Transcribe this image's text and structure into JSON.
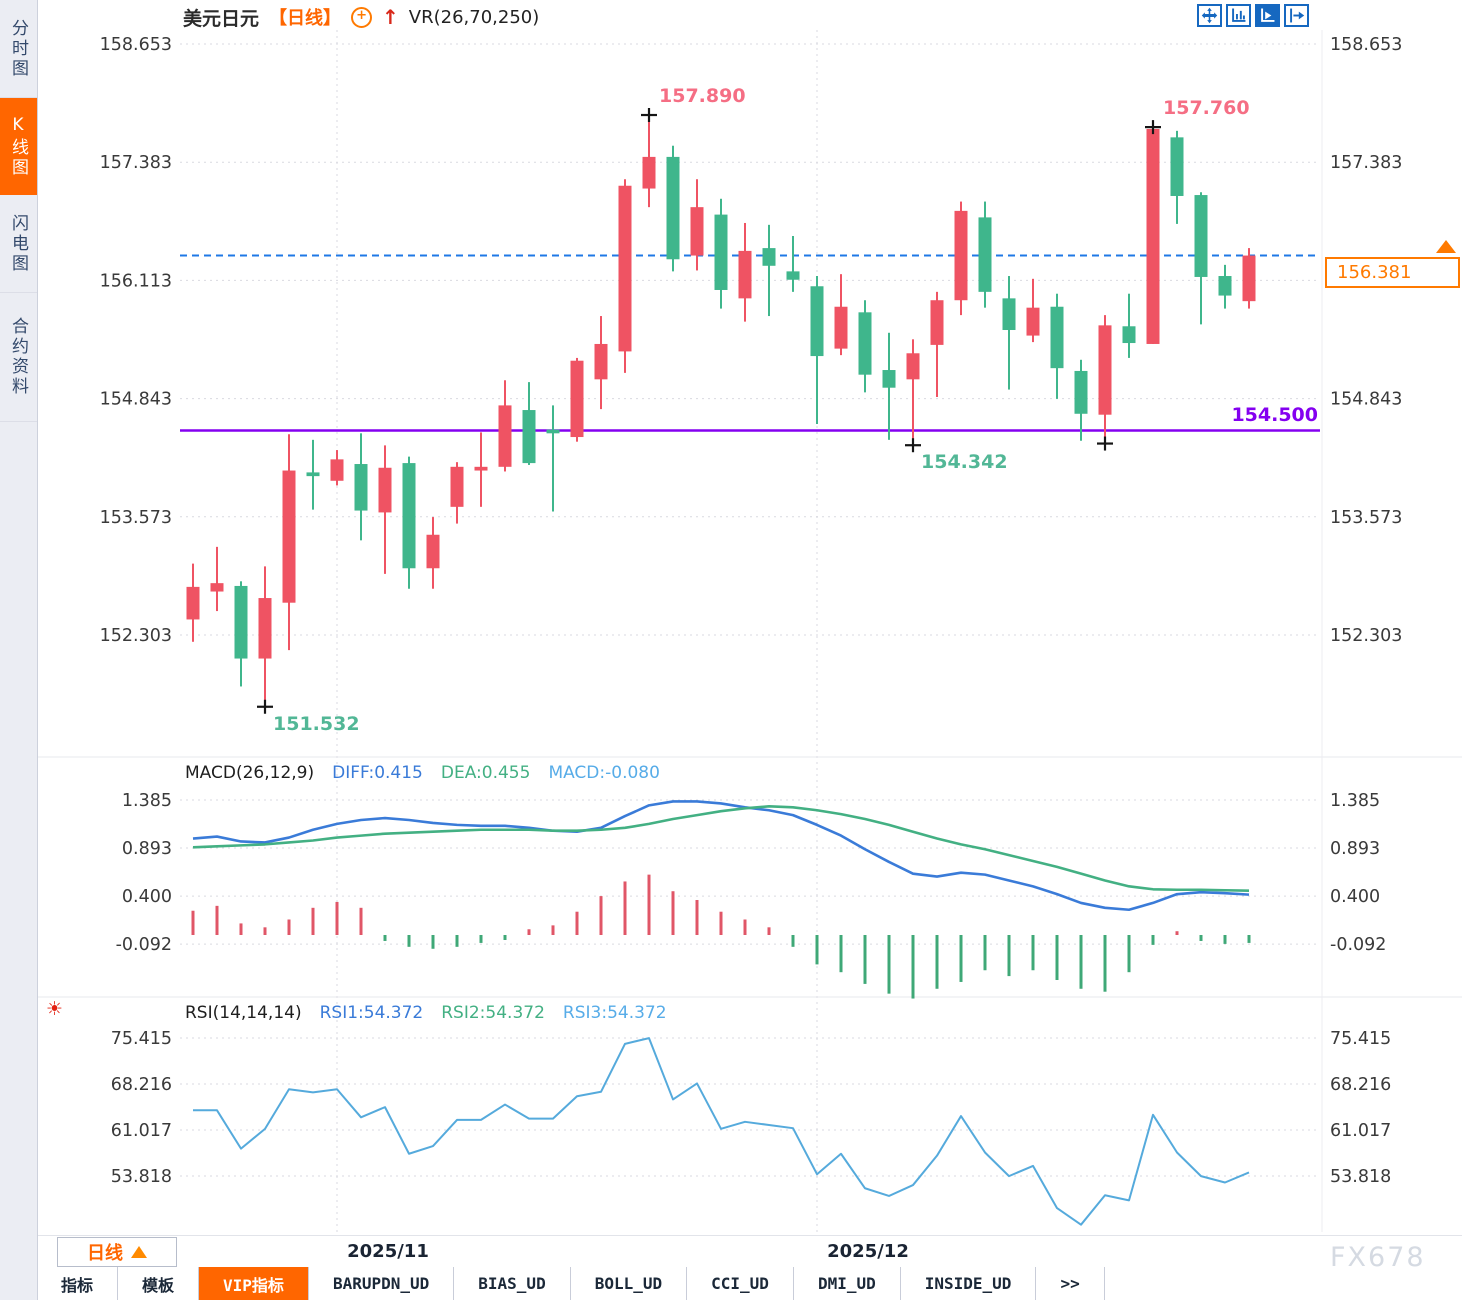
{
  "colors": {
    "up": "#EF5363",
    "down": "#3FB68C",
    "diff_line": "#3A7BD8",
    "dea_line": "#43B083",
    "hist_up": "#E05667",
    "hist_down": "#3FA877",
    "rsi_line": "#55AADC",
    "current_price_line": "#1F78E6",
    "support_line": "#8400F0",
    "accent_orange": "#FF6600",
    "grid": "#D9DAE0",
    "axis_text": "#3A3A3A",
    "cross": "#151515"
  },
  "sidebar": {
    "items": [
      {
        "label": "分时图",
        "active": false
      },
      {
        "label": "K线图",
        "active": true
      },
      {
        "label": "闪电图",
        "active": false
      },
      {
        "label": "合约资料",
        "active": false
      }
    ]
  },
  "header": {
    "symbol": "美元日元",
    "period_tag": "【日线】",
    "overlay_indicator": "VR(26,70,250)"
  },
  "toolbar": {
    "icons": [
      {
        "name": "pan-icon",
        "active": false
      },
      {
        "name": "axis-scale-icon",
        "active": false
      },
      {
        "name": "auto-scale-icon",
        "active": true
      },
      {
        "name": "jump-latest-icon",
        "active": false
      }
    ]
  },
  "chart_data": {
    "type": "candlestick",
    "symbol": "美元日元",
    "period": "日线",
    "price_axis": [
      "158.653",
      "157.383",
      "156.113",
      "154.843",
      "153.573",
      "152.303"
    ],
    "x_axis": [
      {
        "label": "2025/11",
        "index": 6
      },
      {
        "label": "2025/12",
        "index": 26
      }
    ],
    "candles_ohlc": [
      [
        152.47,
        153.07,
        152.23,
        152.82
      ],
      [
        152.77,
        153.25,
        152.56,
        152.86
      ],
      [
        152.83,
        152.88,
        151.75,
        152.05
      ],
      [
        152.05,
        153.04,
        151.53,
        152.7
      ],
      [
        152.65,
        154.46,
        152.14,
        154.07
      ],
      [
        154.05,
        154.4,
        153.65,
        154.01
      ],
      [
        153.96,
        154.29,
        153.91,
        154.19
      ],
      [
        154.14,
        154.47,
        153.32,
        153.64
      ],
      [
        153.62,
        154.34,
        152.96,
        154.1
      ],
      [
        154.15,
        154.22,
        152.8,
        153.02
      ],
      [
        153.02,
        153.57,
        152.8,
        153.38
      ],
      [
        153.68,
        154.16,
        153.5,
        154.11
      ],
      [
        154.07,
        154.48,
        153.68,
        154.11
      ],
      [
        154.11,
        155.04,
        154.06,
        154.77
      ],
      [
        154.72,
        155.02,
        154.13,
        154.15
      ],
      [
        154.51,
        154.77,
        153.63,
        154.47
      ],
      [
        154.43,
        155.28,
        154.38,
        155.25
      ],
      [
        155.05,
        155.73,
        154.73,
        155.43
      ],
      [
        155.35,
        157.2,
        155.12,
        157.13
      ],
      [
        157.1,
        157.89,
        156.9,
        157.44
      ],
      [
        157.44,
        157.56,
        156.21,
        156.34
      ],
      [
        156.38,
        157.2,
        156.22,
        156.9
      ],
      [
        156.82,
        156.99,
        155.81,
        156.01
      ],
      [
        155.92,
        156.73,
        155.67,
        156.43
      ],
      [
        156.46,
        156.71,
        155.73,
        156.27
      ],
      [
        156.21,
        156.59,
        155.99,
        156.12
      ],
      [
        156.05,
        156.16,
        154.57,
        155.3
      ],
      [
        155.38,
        156.18,
        155.31,
        155.83
      ],
      [
        155.77,
        155.9,
        154.91,
        155.1
      ],
      [
        155.15,
        155.55,
        154.4,
        154.96
      ],
      [
        155.05,
        155.48,
        154.34,
        155.33
      ],
      [
        155.42,
        155.99,
        154.86,
        155.9
      ],
      [
        155.9,
        156.96,
        155.74,
        156.86
      ],
      [
        156.79,
        156.96,
        155.82,
        155.99
      ],
      [
        155.92,
        156.16,
        154.94,
        155.58
      ],
      [
        155.52,
        156.13,
        155.45,
        155.82
      ],
      [
        155.83,
        155.97,
        154.84,
        155.17
      ],
      [
        155.14,
        155.26,
        154.39,
        154.68
      ],
      [
        154.67,
        155.74,
        154.36,
        155.63
      ],
      [
        155.62,
        155.97,
        155.28,
        155.44
      ],
      [
        155.43,
        157.76,
        155.43,
        157.74
      ],
      [
        157.65,
        157.72,
        156.72,
        157.02
      ],
      [
        157.03,
        157.06,
        155.64,
        156.15
      ],
      [
        156.16,
        156.28,
        155.81,
        155.95
      ],
      [
        155.89,
        156.46,
        155.81,
        156.38
      ]
    ],
    "annotations": [
      {
        "index": 19,
        "price": 157.89,
        "label": "157.890",
        "kind": "high"
      },
      {
        "index": 40,
        "price": 157.76,
        "label": "157.760",
        "kind": "high"
      },
      {
        "index": 3,
        "price": 151.532,
        "label": "151.532",
        "kind": "low"
      },
      {
        "index": 30,
        "price": 154.342,
        "label": "154.342",
        "kind": "low"
      },
      {
        "index": 38,
        "price": 154.36,
        "label": "",
        "kind": "low"
      }
    ],
    "current_price": {
      "value": "156.381",
      "price": 156.381
    },
    "support_line": {
      "label": "154.500",
      "price": 154.5
    },
    "macd": {
      "title": "MACD(26,12,9)",
      "diff_label": "DIFF:0.415",
      "dea_label": "DEA:0.455",
      "macd_label": "MACD:-0.080",
      "axis": [
        "1.385",
        "0.893",
        "0.400",
        "-0.092"
      ],
      "diff": [
        0.99,
        1.01,
        0.96,
        0.95,
        1.0,
        1.08,
        1.14,
        1.18,
        1.2,
        1.18,
        1.15,
        1.13,
        1.12,
        1.12,
        1.1,
        1.07,
        1.06,
        1.1,
        1.22,
        1.33,
        1.37,
        1.37,
        1.35,
        1.31,
        1.28,
        1.23,
        1.13,
        1.02,
        0.88,
        0.75,
        0.63,
        0.6,
        0.64,
        0.62,
        0.56,
        0.5,
        0.42,
        0.33,
        0.28,
        0.26,
        0.33,
        0.42,
        0.44,
        0.43,
        0.415
      ],
      "dea": [
        0.9,
        0.91,
        0.92,
        0.93,
        0.95,
        0.97,
        1.0,
        1.02,
        1.04,
        1.05,
        1.06,
        1.07,
        1.08,
        1.08,
        1.08,
        1.07,
        1.07,
        1.08,
        1.1,
        1.14,
        1.19,
        1.23,
        1.27,
        1.3,
        1.32,
        1.31,
        1.28,
        1.24,
        1.19,
        1.13,
        1.06,
        0.99,
        0.93,
        0.88,
        0.82,
        0.76,
        0.7,
        0.63,
        0.56,
        0.5,
        0.47,
        0.465,
        0.465,
        0.46,
        0.455
      ],
      "hist": [
        0.25,
        0.3,
        0.12,
        0.08,
        0.16,
        0.28,
        0.34,
        0.28,
        -0.06,
        -0.12,
        -0.14,
        -0.12,
        -0.08,
        -0.05,
        0.06,
        0.1,
        0.24,
        0.4,
        0.55,
        0.62,
        0.45,
        0.36,
        0.24,
        0.16,
        0.08,
        -0.12,
        -0.3,
        -0.38,
        -0.5,
        -0.6,
        -0.65,
        -0.55,
        -0.48,
        -0.36,
        -0.42,
        -0.36,
        -0.46,
        -0.55,
        -0.58,
        -0.38,
        -0.1,
        0.04,
        -0.06,
        -0.09,
        -0.08
      ]
    },
    "rsi": {
      "title": "RSI(14,14,14)",
      "rsi1_label": "RSI1:54.372",
      "rsi2_label": "RSI2:54.372",
      "rsi3_label": "RSI3:54.372",
      "axis": [
        "75.415",
        "68.216",
        "61.017",
        "53.818"
      ],
      "values": [
        64.1,
        64.1,
        58.1,
        61.2,
        67.4,
        66.9,
        67.4,
        63.0,
        64.6,
        57.3,
        58.5,
        62.6,
        62.6,
        65.0,
        62.8,
        62.8,
        66.3,
        67.0,
        74.5,
        75.4,
        65.8,
        68.3,
        61.2,
        62.3,
        61.8,
        61.3,
        54.1,
        57.3,
        51.9,
        50.7,
        52.4,
        57.0,
        63.2,
        57.5,
        53.8,
        55.4,
        48.8,
        46.2,
        50.8,
        50.0,
        63.4,
        57.5,
        53.8,
        52.8,
        54.372
      ]
    }
  },
  "bottom": {
    "period_selector": "日线",
    "tabs": [
      {
        "label": "指标",
        "active": false
      },
      {
        "label": "模板",
        "active": false
      },
      {
        "label": "VIP指标",
        "active": true
      },
      {
        "label": "BARUPDN_UD",
        "active": false
      },
      {
        "label": "BIAS_UD",
        "active": false
      },
      {
        "label": "BOLL_UD",
        "active": false
      },
      {
        "label": "CCI_UD",
        "active": false
      },
      {
        "label": "DMI_UD",
        "active": false
      },
      {
        "label": "INSIDE_UD",
        "active": false
      },
      {
        "label": ">>",
        "active": false
      }
    ]
  },
  "watermark": "FX678"
}
